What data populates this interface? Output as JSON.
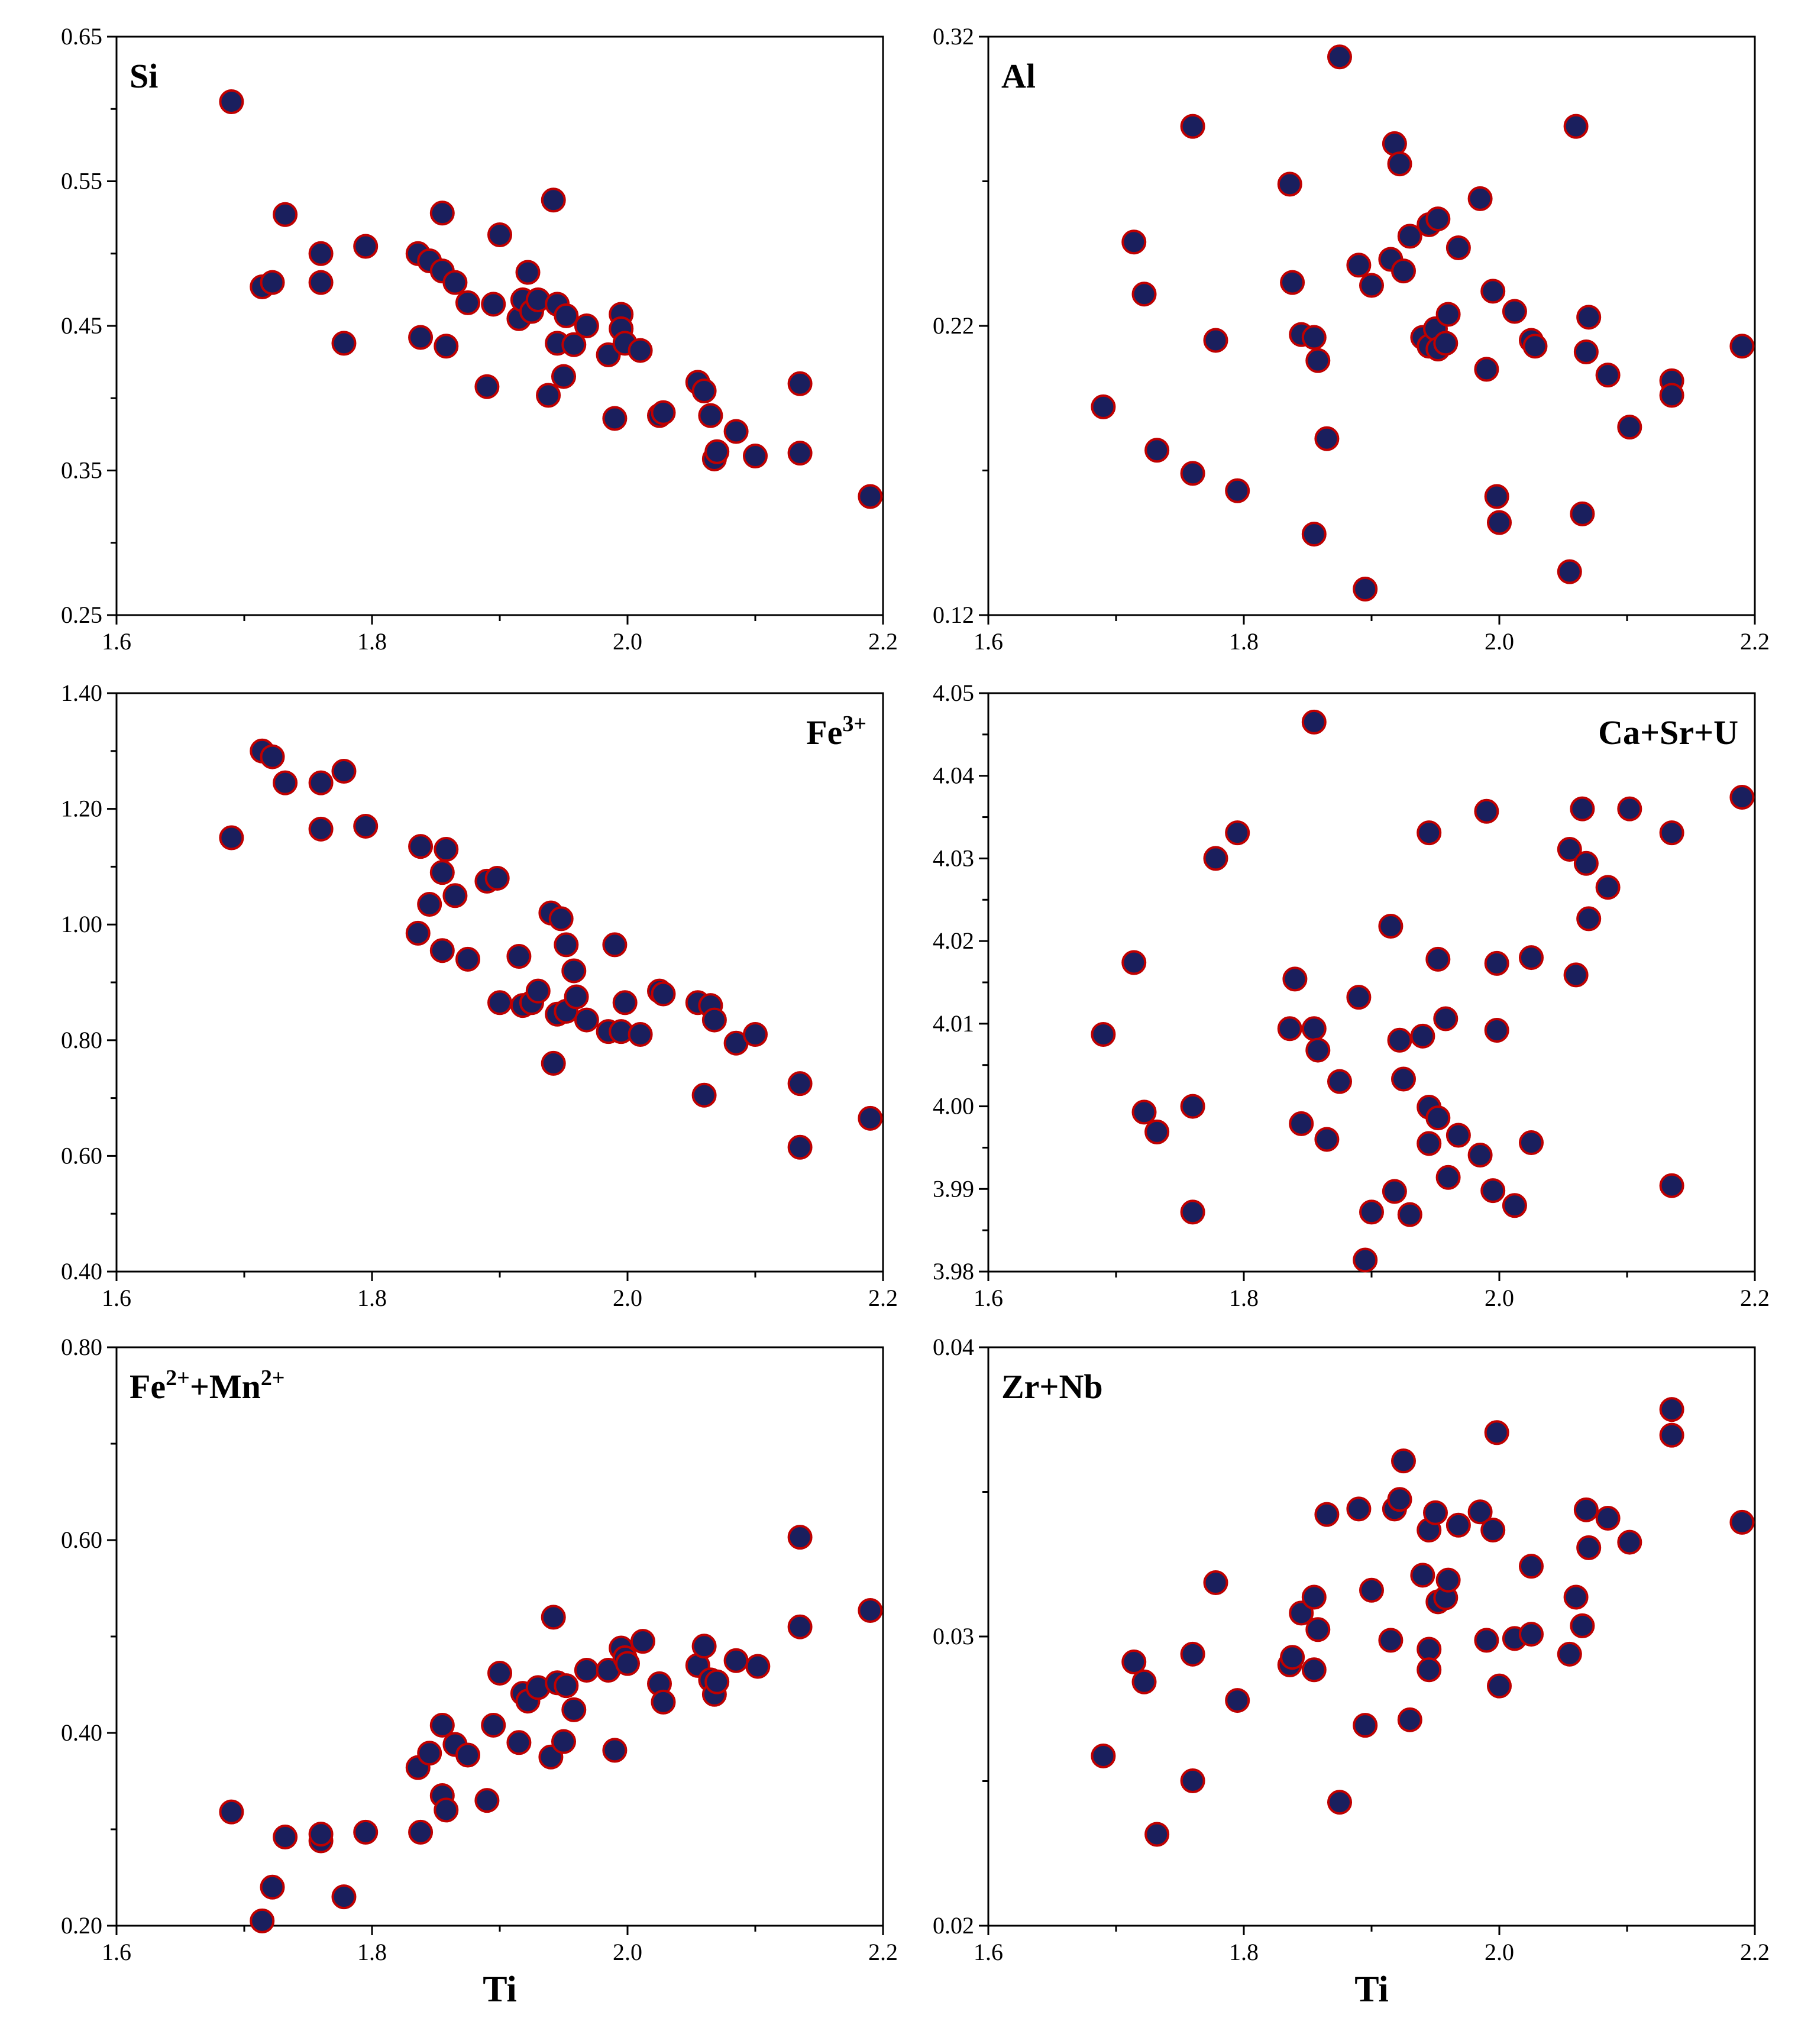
{
  "chart_data": [
    {
      "type": "scatter",
      "label": "Si",
      "xlabel": "",
      "xlim": [
        1.6,
        2.2
      ],
      "ylim": [
        0.25,
        0.65
      ],
      "yticks": [
        "0.25",
        "0.35",
        "0.45",
        "0.55",
        "0.65"
      ],
      "points": [
        [
          1.69,
          0.605
        ],
        [
          1.714,
          0.477
        ],
        [
          1.722,
          0.48
        ],
        [
          1.732,
          0.527
        ],
        [
          1.76,
          0.5
        ],
        [
          1.76,
          0.48
        ],
        [
          1.778,
          0.438
        ],
        [
          1.795,
          0.505
        ],
        [
          1.836,
          0.5
        ],
        [
          1.838,
          0.442
        ],
        [
          1.845,
          0.495
        ],
        [
          1.855,
          0.528
        ],
        [
          1.855,
          0.488
        ],
        [
          1.858,
          0.436
        ],
        [
          1.865,
          0.48
        ],
        [
          1.875,
          0.466
        ],
        [
          1.89,
          0.408
        ],
        [
          1.895,
          0.465
        ],
        [
          1.9,
          0.513
        ],
        [
          1.915,
          0.455
        ],
        [
          1.918,
          0.468
        ],
        [
          1.922,
          0.487
        ],
        [
          1.925,
          0.46
        ],
        [
          1.93,
          0.468
        ],
        [
          1.938,
          0.402
        ],
        [
          1.942,
          0.537
        ],
        [
          1.945,
          0.465
        ],
        [
          1.945,
          0.438
        ],
        [
          1.95,
          0.415
        ],
        [
          1.952,
          0.457
        ],
        [
          1.958,
          0.437
        ],
        [
          1.968,
          0.45
        ],
        [
          1.985,
          0.43
        ],
        [
          1.99,
          0.386
        ],
        [
          1.995,
          0.458
        ],
        [
          1.995,
          0.448
        ],
        [
          1.998,
          0.438
        ],
        [
          2.01,
          0.433
        ],
        [
          2.025,
          0.388
        ],
        [
          2.028,
          0.39
        ],
        [
          2.055,
          0.411
        ],
        [
          2.06,
          0.405
        ],
        [
          2.065,
          0.388
        ],
        [
          2.068,
          0.358
        ],
        [
          2.07,
          0.363
        ],
        [
          2.085,
          0.377
        ],
        [
          2.1,
          0.36
        ],
        [
          2.135,
          0.41
        ],
        [
          2.135,
          0.362
        ],
        [
          2.19,
          0.332
        ]
      ]
    },
    {
      "type": "scatter",
      "label": "Al",
      "xlabel": "",
      "xlim": [
        1.6,
        2.2
      ],
      "ylim": [
        0.12,
        0.32
      ],
      "yticks": [
        "0.12",
        "0.22",
        "0.32"
      ],
      "points": [
        [
          1.69,
          0.192
        ],
        [
          1.714,
          0.249
        ],
        [
          1.722,
          0.231
        ],
        [
          1.732,
          0.177
        ],
        [
          1.76,
          0.289
        ],
        [
          1.76,
          0.169
        ],
        [
          1.778,
          0.215
        ],
        [
          1.795,
          0.163
        ],
        [
          1.836,
          0.269
        ],
        [
          1.838,
          0.235
        ],
        [
          1.845,
          0.217
        ],
        [
          1.855,
          0.148
        ],
        [
          1.855,
          0.216
        ],
        [
          1.858,
          0.208
        ],
        [
          1.865,
          0.181
        ],
        [
          1.875,
          0.313
        ],
        [
          1.89,
          0.241
        ],
        [
          1.895,
          0.129
        ],
        [
          1.9,
          0.234
        ],
        [
          1.915,
          0.243
        ],
        [
          1.918,
          0.283
        ],
        [
          1.922,
          0.276
        ],
        [
          1.925,
          0.239
        ],
        [
          1.93,
          0.251
        ],
        [
          1.94,
          0.216
        ],
        [
          1.945,
          0.255
        ],
        [
          1.945,
          0.213
        ],
        [
          1.95,
          0.219
        ],
        [
          1.952,
          0.257
        ],
        [
          1.952,
          0.212
        ],
        [
          1.958,
          0.214
        ],
        [
          1.96,
          0.224
        ],
        [
          1.968,
          0.247
        ],
        [
          1.985,
          0.264
        ],
        [
          1.99,
          0.205
        ],
        [
          1.995,
          0.232
        ],
        [
          1.998,
          0.161
        ],
        [
          2.0,
          0.152
        ],
        [
          2.012,
          0.225
        ],
        [
          2.025,
          0.215
        ],
        [
          2.028,
          0.213
        ],
        [
          2.055,
          0.135
        ],
        [
          2.06,
          0.289
        ],
        [
          2.065,
          0.155
        ],
        [
          2.068,
          0.211
        ],
        [
          2.07,
          0.223
        ],
        [
          2.085,
          0.203
        ],
        [
          2.102,
          0.185
        ],
        [
          2.135,
          0.201
        ],
        [
          2.135,
          0.196
        ],
        [
          2.19,
          0.213
        ]
      ]
    },
    {
      "type": "scatter",
      "label": "Fe3+",
      "label_base": "Fe",
      "label_sup": "3+",
      "xlabel": "",
      "xlim": [
        1.6,
        2.2
      ],
      "ylim": [
        0.4,
        1.4
      ],
      "yticks": [
        "0.40",
        "0.60",
        "0.80",
        "1.00",
        "1.20",
        "1.40"
      ],
      "points": [
        [
          1.69,
          1.15
        ],
        [
          1.714,
          1.3
        ],
        [
          1.722,
          1.29
        ],
        [
          1.732,
          1.245
        ],
        [
          1.76,
          1.245
        ],
        [
          1.76,
          1.165
        ],
        [
          1.778,
          1.265
        ],
        [
          1.795,
          1.17
        ],
        [
          1.836,
          0.985
        ],
        [
          1.838,
          1.135
        ],
        [
          1.845,
          1.035
        ],
        [
          1.855,
          0.955
        ],
        [
          1.855,
          1.09
        ],
        [
          1.858,
          1.13
        ],
        [
          1.865,
          1.05
        ],
        [
          1.875,
          0.94
        ],
        [
          1.89,
          1.075
        ],
        [
          1.898,
          1.08
        ],
        [
          1.9,
          0.865
        ],
        [
          1.915,
          0.945
        ],
        [
          1.918,
          0.86
        ],
        [
          1.925,
          0.865
        ],
        [
          1.93,
          0.885
        ],
        [
          1.94,
          1.02
        ],
        [
          1.942,
          0.76
        ],
        [
          1.945,
          0.845
        ],
        [
          1.948,
          1.01
        ],
        [
          1.952,
          0.965
        ],
        [
          1.952,
          0.85
        ],
        [
          1.958,
          0.92
        ],
        [
          1.96,
          0.875
        ],
        [
          1.968,
          0.835
        ],
        [
          1.985,
          0.815
        ],
        [
          1.99,
          0.965
        ],
        [
          1.995,
          0.815
        ],
        [
          1.998,
          0.865
        ],
        [
          2.01,
          0.81
        ],
        [
          2.025,
          0.885
        ],
        [
          2.028,
          0.88
        ],
        [
          2.055,
          0.865
        ],
        [
          2.06,
          0.705
        ],
        [
          2.065,
          0.86
        ],
        [
          2.068,
          0.835
        ],
        [
          2.085,
          0.795
        ],
        [
          2.1,
          0.81
        ],
        [
          2.135,
          0.725
        ],
        [
          2.135,
          0.615
        ],
        [
          2.19,
          0.665
        ]
      ]
    },
    {
      "type": "scatter",
      "label": "Ca+Sr+U",
      "xlabel": "",
      "xlim": [
        1.6,
        2.2
      ],
      "ylim": [
        3.98,
        4.05
      ],
      "yticks": [
        "3.98",
        "3.99",
        "4.00",
        "4.01",
        "4.02",
        "4.03",
        "4.04",
        "4.05"
      ],
      "points": [
        [
          1.69,
          4.0087
        ],
        [
          1.714,
          4.0174
        ],
        [
          1.722,
          3.9993
        ],
        [
          1.732,
          3.9969
        ],
        [
          1.76,
          4.0
        ],
        [
          1.76,
          3.9872
        ],
        [
          1.778,
          4.03
        ],
        [
          1.795,
          4.0331
        ],
        [
          1.836,
          4.0094
        ],
        [
          1.84,
          4.0154
        ],
        [
          1.845,
          3.9979
        ],
        [
          1.855,
          4.0465
        ],
        [
          1.855,
          4.0094
        ],
        [
          1.858,
          4.0068
        ],
        [
          1.865,
          3.996
        ],
        [
          1.875,
          4.003
        ],
        [
          1.89,
          4.0132
        ],
        [
          1.895,
          3.9814
        ],
        [
          1.9,
          3.9872
        ],
        [
          1.915,
          4.0218
        ],
        [
          1.918,
          3.9897
        ],
        [
          1.922,
          4.008
        ],
        [
          1.925,
          4.0033
        ],
        [
          1.93,
          3.9869
        ],
        [
          1.94,
          4.0085
        ],
        [
          1.945,
          4.0331
        ],
        [
          1.945,
          3.9999
        ],
        [
          1.945,
          3.9955
        ],
        [
          1.952,
          4.0178
        ],
        [
          1.952,
          3.9986
        ],
        [
          1.958,
          4.0106
        ],
        [
          1.96,
          3.9914
        ],
        [
          1.968,
          3.9965
        ],
        [
          1.985,
          3.9941
        ],
        [
          1.99,
          4.0357
        ],
        [
          1.995,
          3.9898
        ],
        [
          1.998,
          4.0173
        ],
        [
          1.998,
          4.0092
        ],
        [
          2.012,
          3.988
        ],
        [
          2.025,
          4.018
        ],
        [
          2.025,
          3.9956
        ],
        [
          2.055,
          4.0311
        ],
        [
          2.06,
          4.0159
        ],
        [
          2.065,
          4.036
        ],
        [
          2.068,
          4.0294
        ],
        [
          2.07,
          4.0227
        ],
        [
          2.085,
          4.0265
        ],
        [
          2.102,
          4.036
        ],
        [
          2.135,
          4.0331
        ],
        [
          2.135,
          3.9904
        ],
        [
          2.19,
          4.0374
        ]
      ]
    },
    {
      "type": "scatter",
      "label": "Fe2++Mn2+",
      "label_parts": [
        "Fe",
        "2+",
        "+Mn",
        "2+"
      ],
      "xlabel": "Ti",
      "xlim": [
        1.6,
        2.2
      ],
      "ylim": [
        0.2,
        0.8
      ],
      "yticks": [
        "0.20",
        "0.40",
        "0.60",
        "0.80"
      ],
      "points": [
        [
          1.69,
          0.318
        ],
        [
          1.714,
          0.205
        ],
        [
          1.722,
          0.24
        ],
        [
          1.732,
          0.292
        ],
        [
          1.76,
          0.288
        ],
        [
          1.76,
          0.295
        ],
        [
          1.778,
          0.23
        ],
        [
          1.795,
          0.297
        ],
        [
          1.836,
          0.364
        ],
        [
          1.838,
          0.297
        ],
        [
          1.845,
          0.379
        ],
        [
          1.855,
          0.408
        ],
        [
          1.855,
          0.335
        ],
        [
          1.858,
          0.32
        ],
        [
          1.865,
          0.388
        ],
        [
          1.875,
          0.377
        ],
        [
          1.89,
          0.33
        ],
        [
          1.895,
          0.408
        ],
        [
          1.9,
          0.462
        ],
        [
          1.915,
          0.39
        ],
        [
          1.918,
          0.441
        ],
        [
          1.922,
          0.433
        ],
        [
          1.93,
          0.447
        ],
        [
          1.94,
          0.375
        ],
        [
          1.942,
          0.52
        ],
        [
          1.945,
          0.452
        ],
        [
          1.95,
          0.391
        ],
        [
          1.952,
          0.449
        ],
        [
          1.958,
          0.424
        ],
        [
          1.968,
          0.465
        ],
        [
          1.985,
          0.465
        ],
        [
          1.99,
          0.382
        ],
        [
          1.995,
          0.488
        ],
        [
          1.998,
          0.478
        ],
        [
          2.0,
          0.472
        ],
        [
          2.012,
          0.495
        ],
        [
          2.025,
          0.451
        ],
        [
          2.028,
          0.432
        ],
        [
          2.055,
          0.47
        ],
        [
          2.06,
          0.49
        ],
        [
          2.065,
          0.455
        ],
        [
          2.068,
          0.44
        ],
        [
          2.07,
          0.453
        ],
        [
          2.085,
          0.475
        ],
        [
          2.102,
          0.469
        ],
        [
          2.135,
          0.603
        ],
        [
          2.135,
          0.51
        ],
        [
          2.19,
          0.527
        ]
      ]
    },
    {
      "type": "scatter",
      "label": "Zr+Nb",
      "xlabel": "Ti",
      "xlim": [
        1.6,
        2.2
      ],
      "ylim": [
        0.02,
        0.04
      ],
      "yticks": [
        "0.02",
        "0.03",
        "0.04"
      ],
      "points": [
        [
          1.69,
          0.02587
        ],
        [
          1.714,
          0.02912
        ],
        [
          1.722,
          0.02843
        ],
        [
          1.732,
          0.02316
        ],
        [
          1.76,
          0.02939
        ],
        [
          1.76,
          0.02501
        ],
        [
          1.778,
          0.03186
        ],
        [
          1.795,
          0.02779
        ],
        [
          1.836,
          0.02902
        ],
        [
          1.838,
          0.02928
        ],
        [
          1.845,
          0.03081
        ],
        [
          1.855,
          0.03136
        ],
        [
          1.855,
          0.02885
        ],
        [
          1.858,
          0.03024
        ],
        [
          1.865,
          0.03422
        ],
        [
          1.875,
          0.02427
        ],
        [
          1.89,
          0.03441
        ],
        [
          1.895,
          0.02693
        ],
        [
          1.9,
          0.0316
        ],
        [
          1.915,
          0.02987
        ],
        [
          1.918,
          0.03441
        ],
        [
          1.922,
          0.03474
        ],
        [
          1.925,
          0.03607
        ],
        [
          1.93,
          0.02712
        ],
        [
          1.94,
          0.03212
        ],
        [
          1.945,
          0.03368
        ],
        [
          1.945,
          0.02956
        ],
        [
          1.945,
          0.02885
        ],
        [
          1.95,
          0.03428
        ],
        [
          1.952,
          0.0312
        ],
        [
          1.958,
          0.03134
        ],
        [
          1.96,
          0.03195
        ],
        [
          1.968,
          0.03385
        ],
        [
          1.985,
          0.03431
        ],
        [
          1.99,
          0.02987
        ],
        [
          1.995,
          0.03368
        ],
        [
          1.998,
          0.03705
        ],
        [
          2.0,
          0.02829
        ],
        [
          2.012,
          0.02993
        ],
        [
          2.025,
          0.03008
        ],
        [
          2.025,
          0.03243
        ],
        [
          2.055,
          0.02939
        ],
        [
          2.06,
          0.03136
        ],
        [
          2.065,
          0.03037
        ],
        [
          2.068,
          0.03438
        ],
        [
          2.07,
          0.03307
        ],
        [
          2.085,
          0.03409
        ],
        [
          2.102,
          0.03326
        ],
        [
          2.135,
          0.03785
        ],
        [
          2.135,
          0.03696
        ],
        [
          2.19,
          0.03395
        ]
      ]
    }
  ],
  "xticks": [
    "1.6",
    "1.8",
    "2.0",
    "2.2"
  ],
  "style": {
    "marker_fill": "#1a1f5e",
    "marker_edge": "#c00000",
    "axis_color": "#000000"
  }
}
